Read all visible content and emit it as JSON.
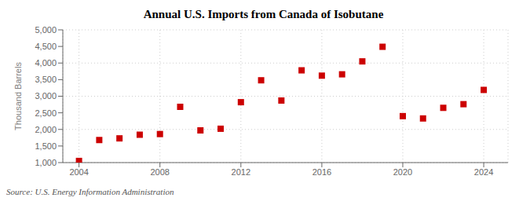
{
  "chart_data": {
    "type": "scatter",
    "title": "Annual U.S. Imports from Canada of Isobutane",
    "ylabel": "Thousand Barrels",
    "annotation": "Source: U.S. Energy Information Administration",
    "x": [
      2004,
      2005,
      2006,
      2007,
      2008,
      2009,
      2010,
      2011,
      2012,
      2013,
      2014,
      2015,
      2016,
      2017,
      2018,
      2019,
      2020,
      2021,
      2022,
      2023,
      2024
    ],
    "values": [
      1050,
      1680,
      1730,
      1840,
      1860,
      2680,
      1970,
      2020,
      2820,
      3480,
      2870,
      3780,
      3620,
      3660,
      4050,
      4490,
      2400,
      2330,
      2650,
      2760,
      3190
    ],
    "color": "#cc0000",
    "marker": "square",
    "xlim": [
      2003.2,
      2025.2
    ],
    "xticks": [
      2004,
      2008,
      2012,
      2016,
      2020,
      2024
    ],
    "ylim": [
      1000,
      5000
    ],
    "yticks": [
      {
        "value": 1000,
        "label": "1,000"
      },
      {
        "value": 1500,
        "label": "1,500"
      },
      {
        "value": 2000,
        "label": "2,000"
      },
      {
        "value": 2500,
        "label": "2,500"
      },
      {
        "value": 3000,
        "label": "3,000"
      },
      {
        "value": 3500,
        "label": "3,500"
      },
      {
        "value": 4000,
        "label": "4,000"
      },
      {
        "value": 4500,
        "label": "4,500"
      },
      {
        "value": 5000,
        "label": "5,000"
      }
    ],
    "grid": true
  }
}
